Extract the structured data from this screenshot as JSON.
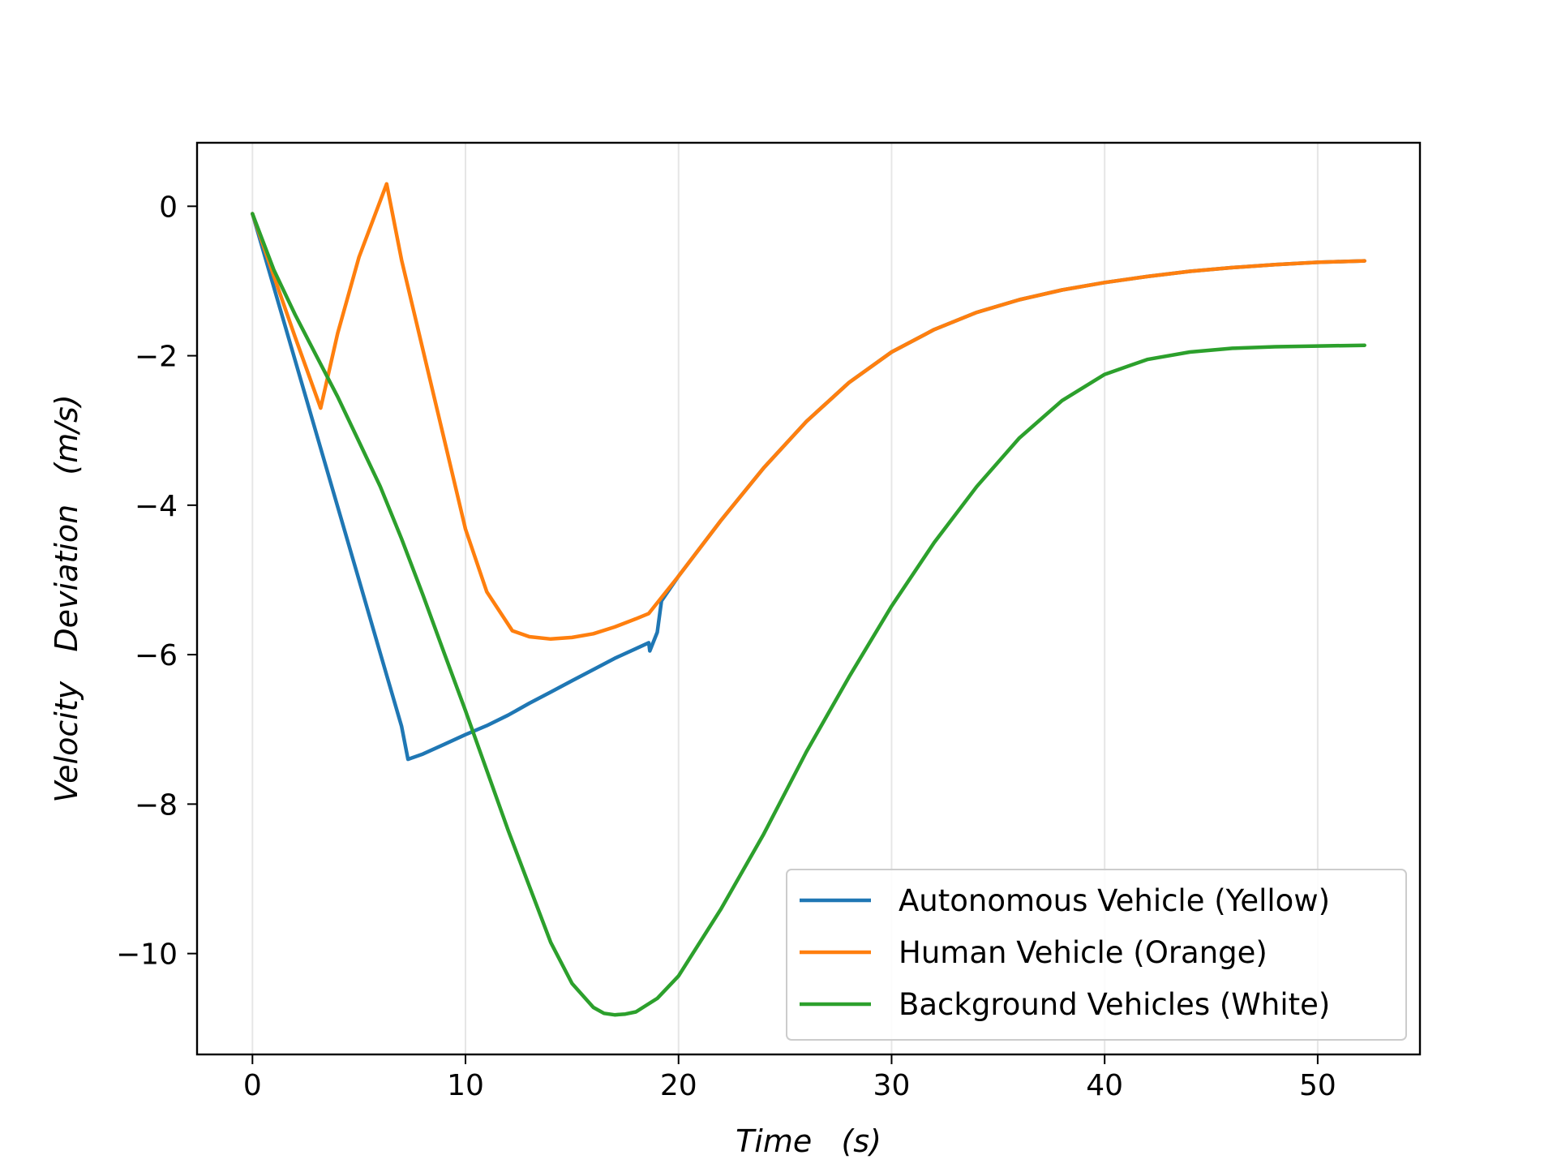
{
  "chart_data": {
    "type": "line",
    "title": "",
    "xlabel": "Time   (s)",
    "ylabel": "Velocity   Deviation   (m/s)",
    "xlim": [
      -2.6,
      54.8
    ],
    "ylim": [
      -11.35,
      0.85
    ],
    "xticks": [
      0,
      10,
      20,
      30,
      40,
      50
    ],
    "yticks": [
      0,
      -2,
      -4,
      -6,
      -8,
      -10
    ],
    "xtick_labels": [
      "0",
      "10",
      "20",
      "30",
      "40",
      "50"
    ],
    "ytick_labels": [
      "0",
      "−2",
      "−4",
      "−6",
      "−8",
      "−10"
    ],
    "grid": "vertical",
    "legend_position": "lower-right",
    "series": [
      {
        "name": "Autonomous Vehicle (Yellow)",
        "color": "#1f77b4",
        "x": [
          0,
          1,
          2,
          3,
          4,
          5,
          6,
          7,
          7.3,
          8,
          9,
          10,
          11,
          12,
          13,
          14,
          15,
          16,
          17,
          18,
          18.6,
          18.65,
          19.0,
          19.2,
          20,
          22,
          24,
          26,
          28,
          30,
          32,
          34,
          36,
          38,
          40,
          42,
          44,
          46,
          48,
          50,
          52.2
        ],
        "y": [
          -0.1,
          -1.08,
          -2.06,
          -3.04,
          -4.02,
          -5.0,
          -5.98,
          -6.96,
          -7.4,
          -7.33,
          -7.2,
          -7.07,
          -6.95,
          -6.81,
          -6.65,
          -6.5,
          -6.35,
          -6.2,
          -6.05,
          -5.92,
          -5.84,
          -5.95,
          -5.7,
          -5.28,
          -4.95,
          -4.2,
          -3.5,
          -2.88,
          -2.36,
          -1.95,
          -1.65,
          -1.42,
          -1.25,
          -1.12,
          -1.02,
          -0.94,
          -0.87,
          -0.82,
          -0.78,
          -0.75,
          -0.73
        ]
      },
      {
        "name": "Human Vehicle (Orange)",
        "color": "#ff7f0e",
        "x": [
          0,
          1,
          2,
          3.2,
          4,
          5,
          6.3,
          7,
          8,
          9,
          10,
          11,
          12.2,
          13,
          14,
          15,
          16,
          17,
          18,
          18.6,
          20,
          22,
          24,
          26,
          28,
          30,
          32,
          34,
          36,
          38,
          40,
          42,
          44,
          46,
          48,
          50,
          52.2
        ],
        "y": [
          -0.1,
          -0.93,
          -1.75,
          -2.7,
          -1.7,
          -0.68,
          0.3,
          -0.72,
          -1.92,
          -3.12,
          -4.32,
          -5.16,
          -5.68,
          -5.76,
          -5.79,
          -5.77,
          -5.72,
          -5.63,
          -5.52,
          -5.45,
          -4.95,
          -4.2,
          -3.5,
          -2.88,
          -2.36,
          -1.95,
          -1.65,
          -1.42,
          -1.25,
          -1.12,
          -1.02,
          -0.94,
          -0.87,
          -0.82,
          -0.78,
          -0.75,
          -0.73
        ]
      },
      {
        "name": "Background Vehicles (White)",
        "color": "#2ca02c",
        "x": [
          0,
          1,
          2,
          3,
          4,
          5,
          6,
          7,
          8,
          9,
          10,
          11,
          12,
          13,
          14,
          15,
          16,
          16.5,
          17,
          17.5,
          18,
          19,
          20,
          22,
          24,
          26,
          28,
          30,
          32,
          34,
          36,
          38,
          40,
          42,
          44,
          46,
          48,
          50,
          52.2
        ],
        "y": [
          -0.1,
          -0.85,
          -1.45,
          -2.0,
          -2.55,
          -3.15,
          -3.75,
          -4.45,
          -5.2,
          -5.98,
          -6.75,
          -7.55,
          -8.35,
          -9.1,
          -9.85,
          -10.4,
          -10.72,
          -10.8,
          -10.82,
          -10.81,
          -10.78,
          -10.6,
          -10.3,
          -9.4,
          -8.4,
          -7.3,
          -6.3,
          -5.35,
          -4.5,
          -3.75,
          -3.1,
          -2.6,
          -2.25,
          -2.05,
          -1.95,
          -1.9,
          -1.88,
          -1.87,
          -1.86
        ]
      }
    ]
  }
}
